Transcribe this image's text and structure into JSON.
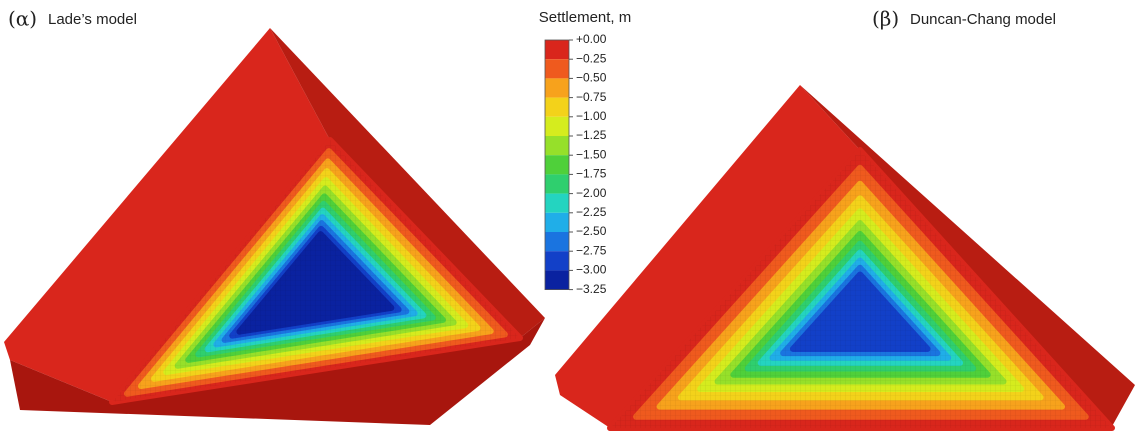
{
  "panels": [
    {
      "label": "(α)",
      "title": "Lade’s model"
    },
    {
      "label": "(β)",
      "title": "Duncan-Chang model"
    }
  ],
  "legend": {
    "title": "Settlement, m",
    "ticks": [
      "+0.00",
      "−0.25",
      "−0.50",
      "−0.75",
      "−1.00",
      "−1.25",
      "−1.50",
      "−1.75",
      "−2.00",
      "−2.25",
      "−2.50",
      "−2.75",
      "−3.00",
      "−3.25"
    ]
  }
}
